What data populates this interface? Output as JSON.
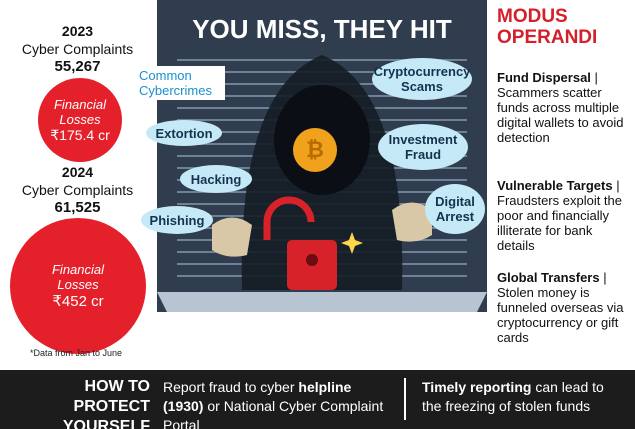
{
  "title": "YOU MISS, THEY HIT",
  "stats": [
    {
      "year": "2023",
      "label": "Cyber Complaints",
      "complaints": "55,267",
      "loss_label": "Financial Losses",
      "loss": "₹175.4 cr"
    },
    {
      "year": "2024",
      "label": "Cyber Complaints",
      "complaints": "61,525",
      "loss_label": "Financial Losses",
      "loss": "₹452 cr"
    }
  ],
  "note": "*Data from Jan to June",
  "crimes_heading": "Common Cybercrimes",
  "crimes": [
    "Cryptocurrency Scams",
    "Extortion",
    "Investment Fraud",
    "Hacking",
    "Digital Arrest",
    "Phishing"
  ],
  "modus": {
    "heading": "MODUS OPERANDI",
    "items": [
      {
        "title": "Fund Dispersal",
        "text": "| Scammers scatter funds across multiple digital wallets to avoid detection"
      },
      {
        "title": "Vulnerable Targets",
        "text": "| Fraudsters exploit the poor and financially illiterate for bank details"
      },
      {
        "title": "Global Transfers",
        "text": "| Stolen money is funneled overseas via cryptocurrency or gift cards"
      }
    ]
  },
  "protect": {
    "heading": "HOW TO PROTECT YOURSELF",
    "tips": [
      {
        "pre": "Report fraud to cyber ",
        "bold": "helpline (1930)",
        "post": " or National Cyber Complaint Portal"
      },
      {
        "pre": "",
        "bold": "Timely reporting",
        "post": " can lead to the freezing of stolen funds"
      }
    ]
  }
}
